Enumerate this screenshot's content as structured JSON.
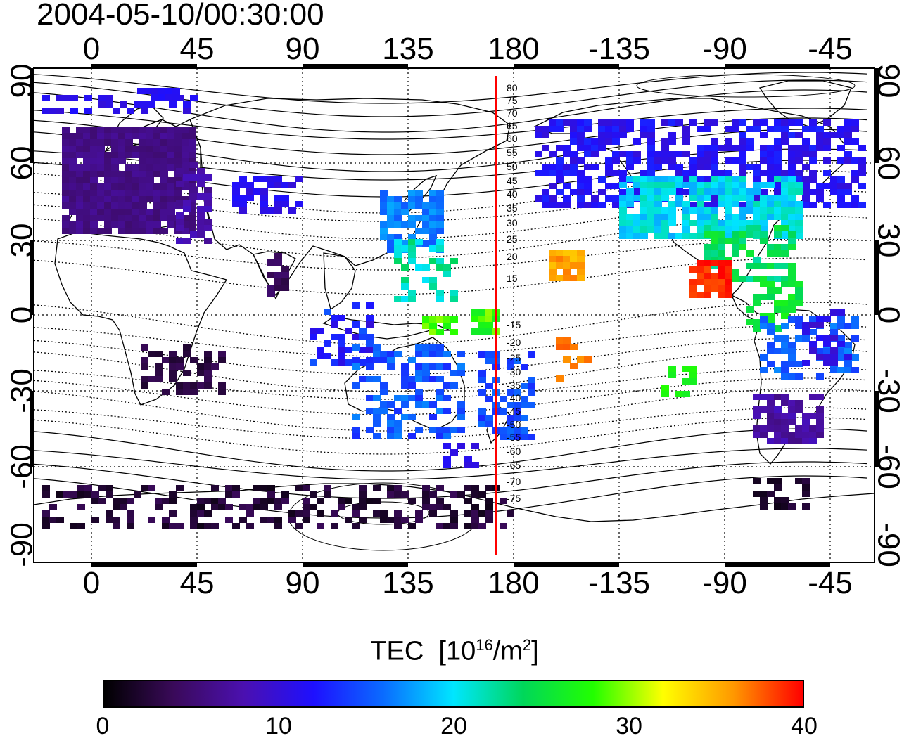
{
  "title": "2004-05-10/00:30:00",
  "map": {
    "type": "global TEC map",
    "longitude_ticks_top": [
      "0",
      "45",
      "90",
      "135",
      "180",
      "-135",
      "-90",
      "-45"
    ],
    "longitude_ticks_bottom": [
      "0",
      "45",
      "90",
      "135",
      "180",
      "-135",
      "-90",
      "-45"
    ],
    "latitude_ticks_left": [
      "90",
      "60",
      "30",
      "0",
      "-30",
      "-60",
      "-90"
    ],
    "latitude_ticks_right": [
      "90",
      "60",
      "30",
      "0",
      "-30",
      "-60",
      "-90"
    ],
    "reference_meridian_color": "#ff0000",
    "contour_labels": [
      "80",
      "75",
      "70",
      "65",
      "60",
      "55",
      "50",
      "45",
      "40",
      "35",
      "30",
      "25",
      "20",
      "15",
      "-15",
      "-20",
      "-25",
      "-30",
      "-35",
      "-40",
      "-45",
      "-50",
      "-55",
      "-60",
      "-65",
      "-70",
      "-75"
    ]
  },
  "colorbar": {
    "title": "TEC",
    "unit_base": "[10",
    "unit_exp": "16",
    "unit_mid": "/m",
    "unit_sq": "2",
    "unit_end": "]",
    "min": 0,
    "max": 40,
    "ticks": [
      "0",
      "10",
      "20",
      "30",
      "40"
    ],
    "colors": [
      "#000000",
      "#3a0a5a",
      "#4b10b0",
      "#1e10ff",
      "#0a6cff",
      "#00e6ff",
      "#00d75a",
      "#22ff00",
      "#ffff00",
      "#ff9900",
      "#ff0000"
    ]
  }
}
